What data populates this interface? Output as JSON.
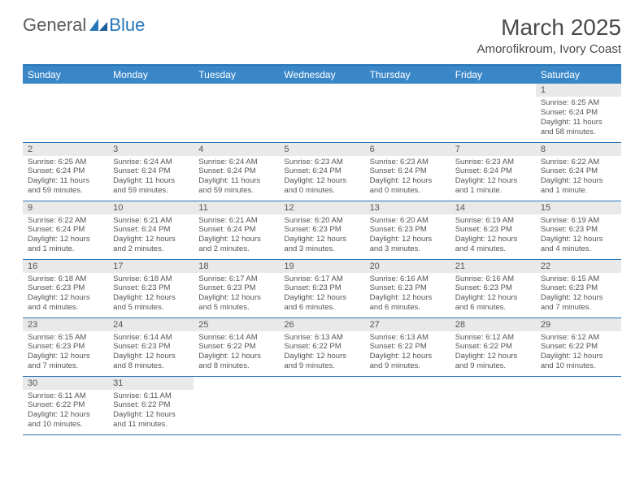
{
  "logo": {
    "text1": "General",
    "text2": "Blue"
  },
  "title": "March 2025",
  "location": "Amorofikroum, Ivory Coast",
  "colors": {
    "header_bg": "#3a87c8",
    "header_text": "#ffffff",
    "border": "#2676b8",
    "daynum_bg": "#e9e9e9",
    "text": "#555555"
  },
  "day_headers": [
    "Sunday",
    "Monday",
    "Tuesday",
    "Wednesday",
    "Thursday",
    "Friday",
    "Saturday"
  ],
  "weeks": [
    [
      null,
      null,
      null,
      null,
      null,
      null,
      {
        "n": "1",
        "sr": "Sunrise: 6:25 AM",
        "ss": "Sunset: 6:24 PM",
        "dl": "Daylight: 11 hours and 58 minutes."
      }
    ],
    [
      {
        "n": "2",
        "sr": "Sunrise: 6:25 AM",
        "ss": "Sunset: 6:24 PM",
        "dl": "Daylight: 11 hours and 59 minutes."
      },
      {
        "n": "3",
        "sr": "Sunrise: 6:24 AM",
        "ss": "Sunset: 6:24 PM",
        "dl": "Daylight: 11 hours and 59 minutes."
      },
      {
        "n": "4",
        "sr": "Sunrise: 6:24 AM",
        "ss": "Sunset: 6:24 PM",
        "dl": "Daylight: 11 hours and 59 minutes."
      },
      {
        "n": "5",
        "sr": "Sunrise: 6:23 AM",
        "ss": "Sunset: 6:24 PM",
        "dl": "Daylight: 12 hours and 0 minutes."
      },
      {
        "n": "6",
        "sr": "Sunrise: 6:23 AM",
        "ss": "Sunset: 6:24 PM",
        "dl": "Daylight: 12 hours and 0 minutes."
      },
      {
        "n": "7",
        "sr": "Sunrise: 6:23 AM",
        "ss": "Sunset: 6:24 PM",
        "dl": "Daylight: 12 hours and 1 minute."
      },
      {
        "n": "8",
        "sr": "Sunrise: 6:22 AM",
        "ss": "Sunset: 6:24 PM",
        "dl": "Daylight: 12 hours and 1 minute."
      }
    ],
    [
      {
        "n": "9",
        "sr": "Sunrise: 6:22 AM",
        "ss": "Sunset: 6:24 PM",
        "dl": "Daylight: 12 hours and 1 minute."
      },
      {
        "n": "10",
        "sr": "Sunrise: 6:21 AM",
        "ss": "Sunset: 6:24 PM",
        "dl": "Daylight: 12 hours and 2 minutes."
      },
      {
        "n": "11",
        "sr": "Sunrise: 6:21 AM",
        "ss": "Sunset: 6:24 PM",
        "dl": "Daylight: 12 hours and 2 minutes."
      },
      {
        "n": "12",
        "sr": "Sunrise: 6:20 AM",
        "ss": "Sunset: 6:23 PM",
        "dl": "Daylight: 12 hours and 3 minutes."
      },
      {
        "n": "13",
        "sr": "Sunrise: 6:20 AM",
        "ss": "Sunset: 6:23 PM",
        "dl": "Daylight: 12 hours and 3 minutes."
      },
      {
        "n": "14",
        "sr": "Sunrise: 6:19 AM",
        "ss": "Sunset: 6:23 PM",
        "dl": "Daylight: 12 hours and 4 minutes."
      },
      {
        "n": "15",
        "sr": "Sunrise: 6:19 AM",
        "ss": "Sunset: 6:23 PM",
        "dl": "Daylight: 12 hours and 4 minutes."
      }
    ],
    [
      {
        "n": "16",
        "sr": "Sunrise: 6:18 AM",
        "ss": "Sunset: 6:23 PM",
        "dl": "Daylight: 12 hours and 4 minutes."
      },
      {
        "n": "17",
        "sr": "Sunrise: 6:18 AM",
        "ss": "Sunset: 6:23 PM",
        "dl": "Daylight: 12 hours and 5 minutes."
      },
      {
        "n": "18",
        "sr": "Sunrise: 6:17 AM",
        "ss": "Sunset: 6:23 PM",
        "dl": "Daylight: 12 hours and 5 minutes."
      },
      {
        "n": "19",
        "sr": "Sunrise: 6:17 AM",
        "ss": "Sunset: 6:23 PM",
        "dl": "Daylight: 12 hours and 6 minutes."
      },
      {
        "n": "20",
        "sr": "Sunrise: 6:16 AM",
        "ss": "Sunset: 6:23 PM",
        "dl": "Daylight: 12 hours and 6 minutes."
      },
      {
        "n": "21",
        "sr": "Sunrise: 6:16 AM",
        "ss": "Sunset: 6:23 PM",
        "dl": "Daylight: 12 hours and 6 minutes."
      },
      {
        "n": "22",
        "sr": "Sunrise: 6:15 AM",
        "ss": "Sunset: 6:23 PM",
        "dl": "Daylight: 12 hours and 7 minutes."
      }
    ],
    [
      {
        "n": "23",
        "sr": "Sunrise: 6:15 AM",
        "ss": "Sunset: 6:23 PM",
        "dl": "Daylight: 12 hours and 7 minutes."
      },
      {
        "n": "24",
        "sr": "Sunrise: 6:14 AM",
        "ss": "Sunset: 6:23 PM",
        "dl": "Daylight: 12 hours and 8 minutes."
      },
      {
        "n": "25",
        "sr": "Sunrise: 6:14 AM",
        "ss": "Sunset: 6:22 PM",
        "dl": "Daylight: 12 hours and 8 minutes."
      },
      {
        "n": "26",
        "sr": "Sunrise: 6:13 AM",
        "ss": "Sunset: 6:22 PM",
        "dl": "Daylight: 12 hours and 9 minutes."
      },
      {
        "n": "27",
        "sr": "Sunrise: 6:13 AM",
        "ss": "Sunset: 6:22 PM",
        "dl": "Daylight: 12 hours and 9 minutes."
      },
      {
        "n": "28",
        "sr": "Sunrise: 6:12 AM",
        "ss": "Sunset: 6:22 PM",
        "dl": "Daylight: 12 hours and 9 minutes."
      },
      {
        "n": "29",
        "sr": "Sunrise: 6:12 AM",
        "ss": "Sunset: 6:22 PM",
        "dl": "Daylight: 12 hours and 10 minutes."
      }
    ],
    [
      {
        "n": "30",
        "sr": "Sunrise: 6:11 AM",
        "ss": "Sunset: 6:22 PM",
        "dl": "Daylight: 12 hours and 10 minutes."
      },
      {
        "n": "31",
        "sr": "Sunrise: 6:11 AM",
        "ss": "Sunset: 6:22 PM",
        "dl": "Daylight: 12 hours and 11 minutes."
      },
      null,
      null,
      null,
      null,
      null
    ]
  ]
}
